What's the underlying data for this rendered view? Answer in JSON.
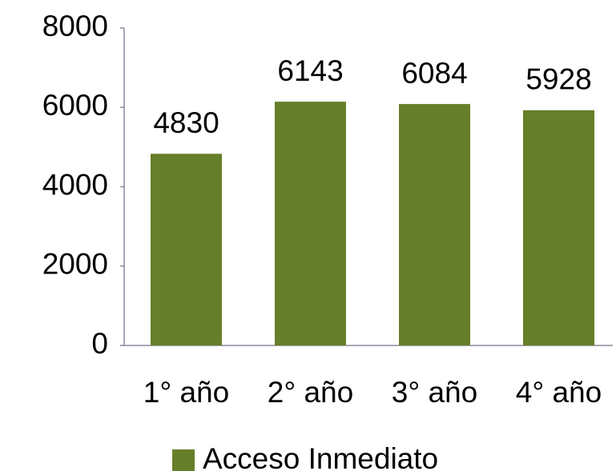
{
  "chart_data": {
    "type": "bar",
    "categories": [
      "1° año",
      "2° año",
      "3° año",
      "4° año"
    ],
    "series": [
      {
        "name": "Acceso Inmediato",
        "color": "#667f2a",
        "values": [
          4830,
          6143,
          6084,
          5928
        ]
      }
    ],
    "ylim": [
      0,
      8000
    ],
    "yticks": [
      0,
      2000,
      4000,
      6000,
      8000
    ],
    "grid": false,
    "legend": "bottom"
  }
}
